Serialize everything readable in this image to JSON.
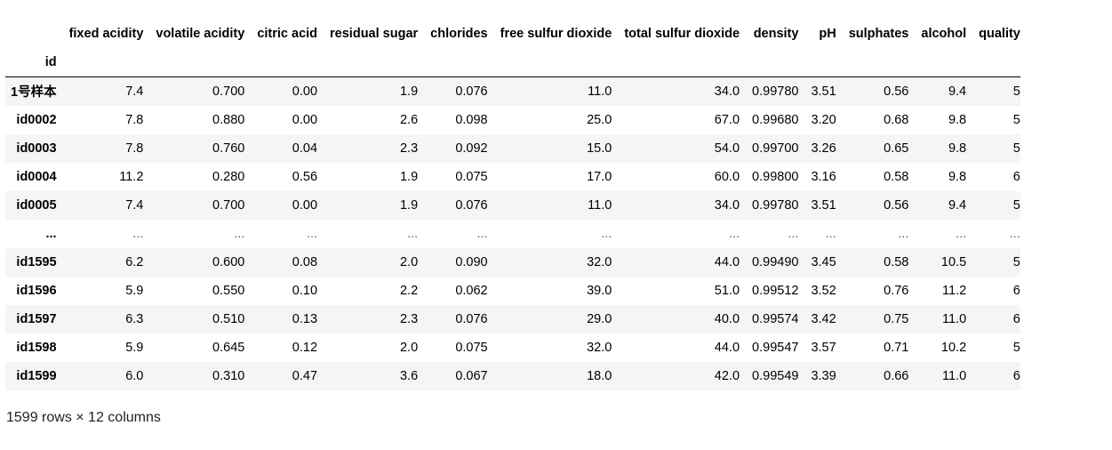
{
  "table": {
    "index_name": "id",
    "columns": [
      "fixed acidity",
      "volatile acidity",
      "citric acid",
      "residual sugar",
      "chlorides",
      "free sulfur dioxide",
      "total sulfur dioxide",
      "density",
      "pH",
      "sulphates",
      "alcohol",
      "quality"
    ],
    "rows": [
      {
        "index": "1号样本",
        "cells": [
          "7.4",
          "0.700",
          "0.00",
          "1.9",
          "0.076",
          "11.0",
          "34.0",
          "0.99780",
          "3.51",
          "0.56",
          "9.4",
          "5"
        ]
      },
      {
        "index": "id0002",
        "cells": [
          "7.8",
          "0.880",
          "0.00",
          "2.6",
          "0.098",
          "25.0",
          "67.0",
          "0.99680",
          "3.20",
          "0.68",
          "9.8",
          "5"
        ]
      },
      {
        "index": "id0003",
        "cells": [
          "7.8",
          "0.760",
          "0.04",
          "2.3",
          "0.092",
          "15.0",
          "54.0",
          "0.99700",
          "3.26",
          "0.65",
          "9.8",
          "5"
        ]
      },
      {
        "index": "id0004",
        "cells": [
          "11.2",
          "0.280",
          "0.56",
          "1.9",
          "0.075",
          "17.0",
          "60.0",
          "0.99800",
          "3.16",
          "0.58",
          "9.8",
          "6"
        ]
      },
      {
        "index": "id0005",
        "cells": [
          "7.4",
          "0.700",
          "0.00",
          "1.9",
          "0.076",
          "11.0",
          "34.0",
          "0.99780",
          "3.51",
          "0.56",
          "9.4",
          "5"
        ]
      },
      {
        "index": "...",
        "cells": [
          "...",
          "...",
          "...",
          "...",
          "...",
          "...",
          "...",
          "...",
          "...",
          "...",
          "...",
          "..."
        ]
      },
      {
        "index": "id1595",
        "cells": [
          "6.2",
          "0.600",
          "0.08",
          "2.0",
          "0.090",
          "32.0",
          "44.0",
          "0.99490",
          "3.45",
          "0.58",
          "10.5",
          "5"
        ]
      },
      {
        "index": "id1596",
        "cells": [
          "5.9",
          "0.550",
          "0.10",
          "2.2",
          "0.062",
          "39.0",
          "51.0",
          "0.99512",
          "3.52",
          "0.76",
          "11.2",
          "6"
        ]
      },
      {
        "index": "id1597",
        "cells": [
          "6.3",
          "0.510",
          "0.13",
          "2.3",
          "0.076",
          "29.0",
          "40.0",
          "0.99574",
          "3.42",
          "0.75",
          "11.0",
          "6"
        ]
      },
      {
        "index": "id1598",
        "cells": [
          "5.9",
          "0.645",
          "0.12",
          "2.0",
          "0.075",
          "32.0",
          "44.0",
          "0.99547",
          "3.57",
          "0.71",
          "10.2",
          "5"
        ]
      },
      {
        "index": "id1599",
        "cells": [
          "6.0",
          "0.310",
          "0.47",
          "3.6",
          "0.067",
          "18.0",
          "42.0",
          "0.99549",
          "3.39",
          "0.66",
          "11.0",
          "6"
        ]
      }
    ]
  },
  "footer": {
    "shape_text": "1599 rows × 12 columns"
  },
  "colors": {
    "stripe": "#f5f5f5",
    "header_rule": "#000000"
  }
}
